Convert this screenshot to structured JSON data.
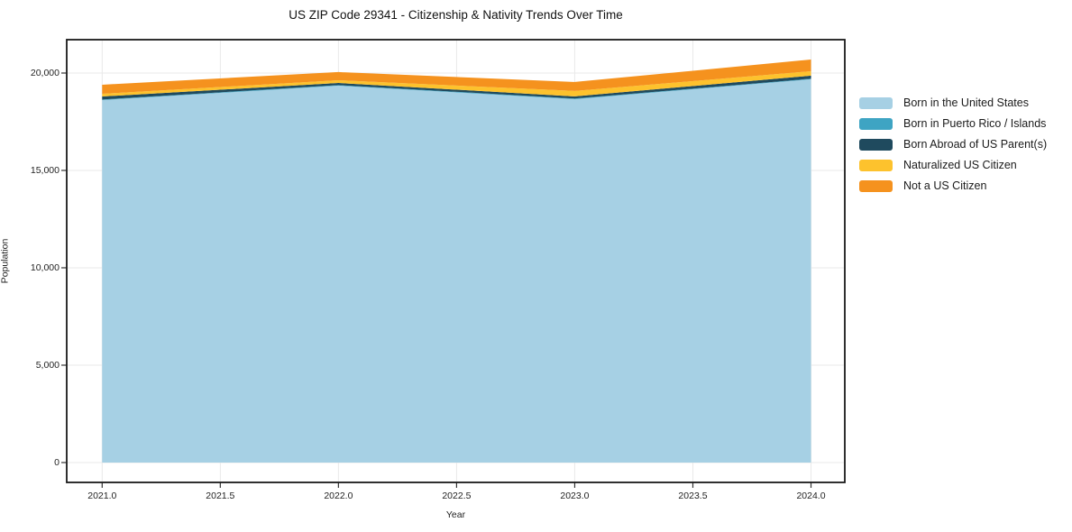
{
  "title": "US ZIP Code 29341 - Citizenship & Nativity Trends Over Time",
  "chart_data": {
    "type": "area",
    "stacked": true,
    "title": "US ZIP Code 29341 - Citizenship & Nativity Trends Over Time",
    "xlabel": "Year",
    "ylabel": "Population",
    "x": [
      2021,
      2022,
      2023,
      2024
    ],
    "series": [
      {
        "name": "Born in the United States",
        "color": "#a6d0e4",
        "values": [
          18610,
          19350,
          18660,
          19680
        ]
      },
      {
        "name": "Born in Puerto Rico / Islands",
        "color": "#3ea4c3",
        "values": [
          30,
          30,
          30,
          30
        ]
      },
      {
        "name": "Born Abroad of US Parent(s)",
        "color": "#1f4a5e",
        "values": [
          155,
          110,
          110,
          155
        ]
      },
      {
        "name": "Naturalized US Citizen",
        "color": "#fdc22d",
        "values": [
          140,
          140,
          280,
          230
        ]
      },
      {
        "name": "Not a US Citizen",
        "color": "#f5921e",
        "values": [
          465,
          420,
          460,
          600
        ]
      }
    ],
    "stack_totals": [
      19400,
      20050,
      19540,
      20695
    ],
    "xlim": [
      2020.85,
      2024.143
    ],
    "ylim": [
      -1020,
      21713
    ],
    "x_ticks": [
      {
        "value": 2021.0,
        "label": "2021.0"
      },
      {
        "value": 2021.5,
        "label": "2021.5"
      },
      {
        "value": 2022.0,
        "label": "2022.0"
      },
      {
        "value": 2022.5,
        "label": "2022.5"
      },
      {
        "value": 2023.0,
        "label": "2023.0"
      },
      {
        "value": 2023.5,
        "label": "2023.5"
      },
      {
        "value": 2024.0,
        "label": "2024.0"
      }
    ],
    "y_ticks": [
      {
        "value": 0,
        "label": "0"
      },
      {
        "value": 5000,
        "label": "5,000"
      },
      {
        "value": 10000,
        "label": "10,000"
      },
      {
        "value": 15000,
        "label": "15,000"
      },
      {
        "value": 20000,
        "label": "20,000"
      }
    ],
    "grid": true,
    "legend_position": "right-outside",
    "colors": {
      "grid": "#e9e9e9",
      "frame": "#1a1a1a",
      "tick": "#333333",
      "background": "#ffffff"
    }
  }
}
